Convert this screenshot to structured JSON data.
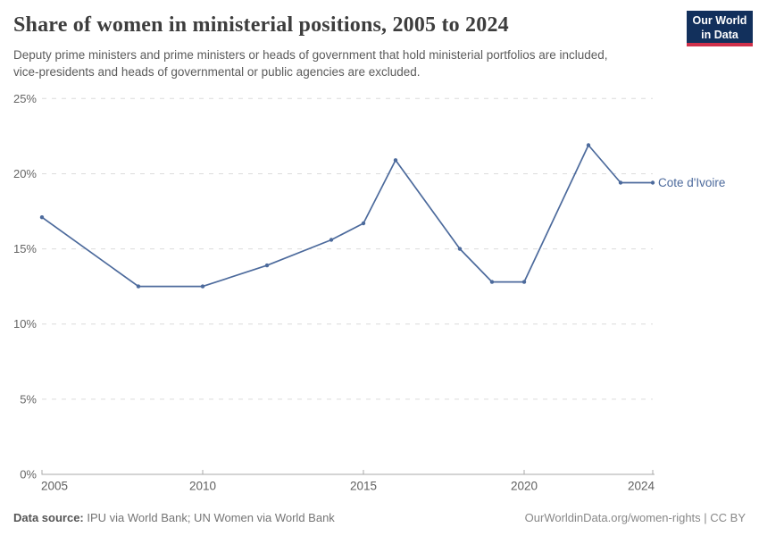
{
  "header": {
    "title": "Share of women in ministerial positions, 2005 to 2024",
    "subtitle": "Deputy prime ministers and prime ministers or heads of government that hold ministerial portfolios are included, vice-presidents and heads of governmental or public agencies are excluded.",
    "logo": {
      "line1": "Our World",
      "line2": "in Data",
      "bg_color": "#12305c",
      "stripe_color": "#cf304a"
    }
  },
  "chart_data": {
    "type": "line",
    "title": "Share of women in ministerial positions, 2005 to 2024",
    "unit": "%",
    "xlabel": "",
    "ylabel": "",
    "xlim": [
      2005,
      2024
    ],
    "ylim": [
      0,
      25
    ],
    "xticks": [
      2005,
      2010,
      2015,
      2020,
      2024
    ],
    "yticks": [
      0,
      5,
      10,
      15,
      20,
      25
    ],
    "grid": "horizontal-dashed",
    "legend_position": "end-of-line-label",
    "series": [
      {
        "name": "Cote d'Ivoire",
        "color": "#4C6A9C",
        "points": [
          {
            "year": 2005,
            "value": 17.1
          },
          {
            "year": 2008,
            "value": 12.5
          },
          {
            "year": 2010,
            "value": 12.5
          },
          {
            "year": 2012,
            "value": 13.9
          },
          {
            "year": 2014,
            "value": 15.6
          },
          {
            "year": 2015,
            "value": 16.7
          },
          {
            "year": 2016,
            "value": 20.9
          },
          {
            "year": 2018,
            "value": 15.0
          },
          {
            "year": 2019,
            "value": 12.8
          },
          {
            "year": 2020,
            "value": 12.8
          },
          {
            "year": 2022,
            "value": 21.9
          },
          {
            "year": 2023,
            "value": 19.4
          },
          {
            "year": 2024,
            "value": 19.4
          }
        ]
      }
    ]
  },
  "footer": {
    "source_label": "Data source:",
    "source_text": " IPU via World Bank; UN Women via World Bank",
    "right_text": "OurWorldinData.org/women-rights | CC BY"
  }
}
